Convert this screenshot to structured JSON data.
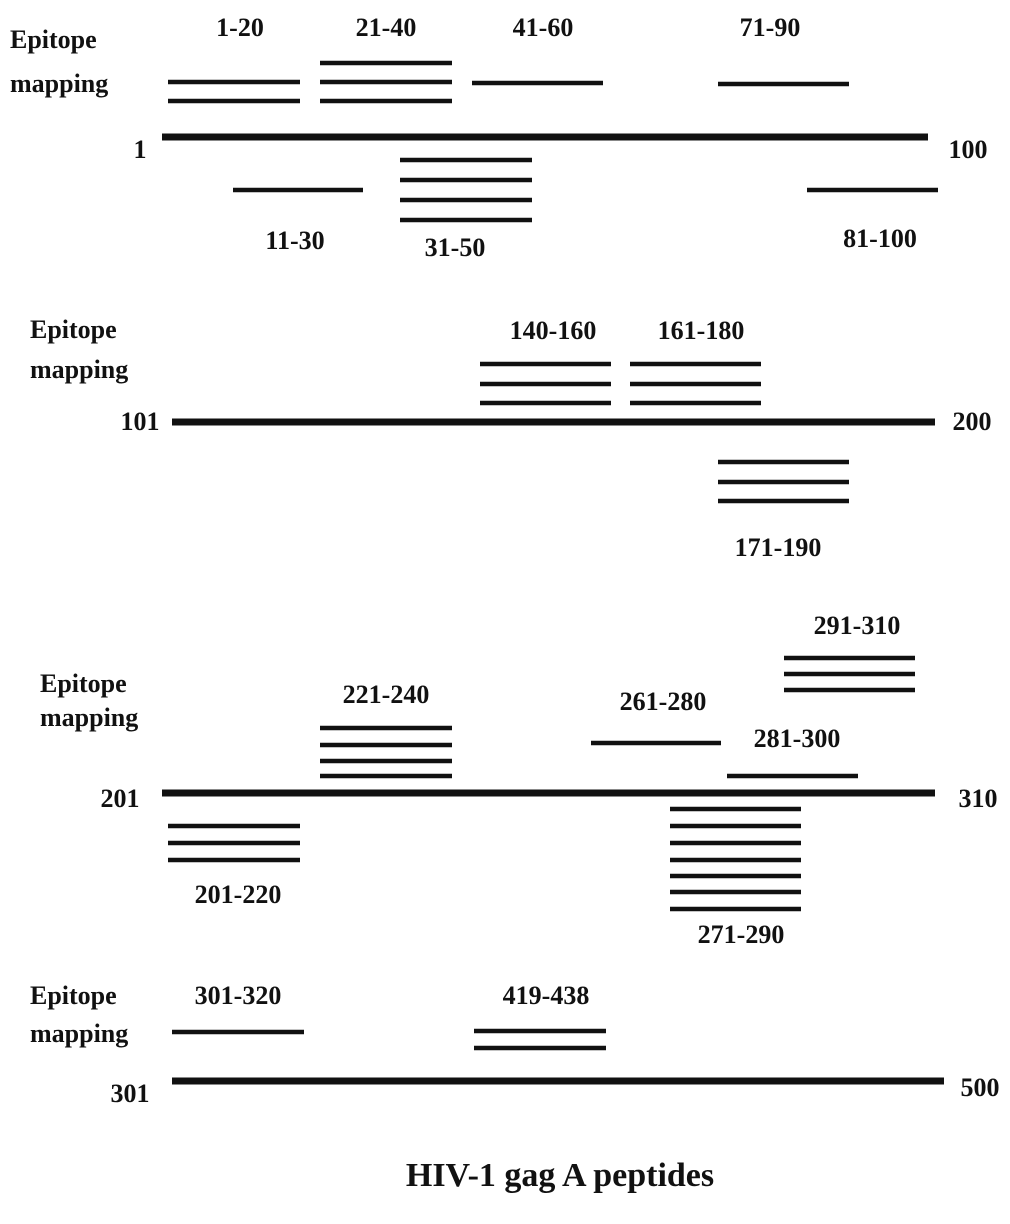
{
  "panels": [
    {
      "label": [
        "Epitope",
        "mapping"
      ],
      "start": "1",
      "end": "100",
      "peptides": [
        "1-20",
        "21-40",
        "41-60",
        "71-90",
        "11-30",
        "31-50",
        "81-100"
      ]
    },
    {
      "label": [
        "Epitope",
        "mapping"
      ],
      "start": "101",
      "end": "200",
      "peptides": [
        "140-160",
        "161-180",
        "171-190"
      ]
    },
    {
      "label": [
        "Epitope",
        "mapping"
      ],
      "start": "201",
      "end": "310",
      "peptides": [
        "221-240",
        "261-280",
        "281-300",
        "291-310",
        "201-220",
        "271-290"
      ]
    },
    {
      "label": [
        "Epitope",
        "mapping"
      ],
      "start": "301",
      "end": "500",
      "peptides": [
        "301-320",
        "419-438"
      ]
    }
  ],
  "caption": "HIV-1 gag A peptides"
}
